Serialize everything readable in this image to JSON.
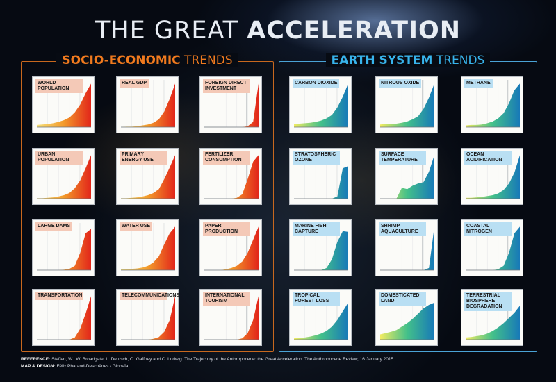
{
  "title_light": "THE GREAT ",
  "title_bold": "ACCELERATION",
  "panels": {
    "socio_economic": {
      "bold": "SOCIO-ECONOMIC",
      "light": " TRENDS"
    },
    "earth_system": {
      "bold": "EARTH SYSTEM",
      "light": " TRENDS"
    }
  },
  "colors": {
    "socio_economic_frame": "#c8681e",
    "earth_system_frame": "#4aa3d6",
    "socio_economic_label_bg": "#f4c9b7",
    "earth_system_label_bg": "#b9dff3",
    "socio_economic_fill": [
      "#f7e27a",
      "#f39a2a",
      "#e2261a"
    ],
    "earth_system_fill": [
      "#f2ec60",
      "#43c08a",
      "#1779b8"
    ]
  },
  "chart_data": [
    {
      "type": "area",
      "group": "socio",
      "name": "World Population",
      "values": [
        0.05,
        0.06,
        0.07,
        0.09,
        0.12,
        0.16,
        0.22,
        0.34,
        0.52,
        0.78,
        1.0
      ]
    },
    {
      "type": "area",
      "group": "socio",
      "name": "Real GDP",
      "values": [
        0.0,
        0.01,
        0.01,
        0.02,
        0.04,
        0.06,
        0.1,
        0.18,
        0.36,
        0.65,
        1.0
      ]
    },
    {
      "type": "area",
      "group": "socio",
      "name": "Foreign Direct Investment",
      "values": [
        0,
        0,
        0,
        0,
        0,
        0,
        0,
        0,
        0.02,
        0.12,
        1.0
      ]
    },
    {
      "type": "area",
      "group": "earth",
      "name": "Carbon Dioxide",
      "values": [
        0.08,
        0.08,
        0.09,
        0.1,
        0.12,
        0.15,
        0.2,
        0.28,
        0.45,
        0.7,
        1.0
      ]
    },
    {
      "type": "area",
      "group": "earth",
      "name": "Nitrous Oxide",
      "values": [
        0.06,
        0.07,
        0.07,
        0.08,
        0.1,
        0.13,
        0.18,
        0.25,
        0.42,
        0.68,
        1.0
      ]
    },
    {
      "type": "area",
      "group": "earth",
      "name": "Methane",
      "values": [
        0.04,
        0.05,
        0.05,
        0.06,
        0.09,
        0.13,
        0.2,
        0.32,
        0.55,
        0.85,
        1.0
      ]
    },
    {
      "type": "area",
      "group": "socio",
      "name": "Urban Population",
      "values": [
        0.01,
        0.01,
        0.02,
        0.03,
        0.05,
        0.08,
        0.13,
        0.24,
        0.42,
        0.7,
        1.0
      ]
    },
    {
      "type": "area",
      "group": "socio",
      "name": "Primary Energy Use",
      "values": [
        0.01,
        0.01,
        0.02,
        0.03,
        0.05,
        0.08,
        0.13,
        0.22,
        0.45,
        0.72,
        1.0
      ]
    },
    {
      "type": "area",
      "group": "socio",
      "name": "Fertilizer Consumption",
      "values": [
        0,
        0,
        0,
        0,
        0,
        0,
        0.02,
        0.1,
        0.45,
        0.85,
        1.0
      ]
    },
    {
      "type": "area",
      "group": "earth",
      "name": "Stratospheric Ozone",
      "values": [
        0,
        0,
        0,
        0,
        0,
        0,
        0,
        0,
        0.05,
        0.7,
        0.75
      ]
    },
    {
      "type": "area",
      "group": "earth",
      "name": "Surface Temperature",
      "values": [
        0,
        0,
        0,
        0,
        0.25,
        0.22,
        0.3,
        0.35,
        0.38,
        0.62,
        1.0
      ]
    },
    {
      "type": "area",
      "group": "earth",
      "name": "Ocean Acidification",
      "values": [
        0.02,
        0.02,
        0.03,
        0.04,
        0.06,
        0.08,
        0.12,
        0.2,
        0.35,
        0.6,
        1.0
      ]
    },
    {
      "type": "area",
      "group": "socio",
      "name": "Large Dams",
      "values": [
        0,
        0,
        0,
        0,
        0,
        0.01,
        0.03,
        0.1,
        0.4,
        0.85,
        0.95
      ]
    },
    {
      "type": "area",
      "group": "socio",
      "name": "Water Use",
      "values": [
        0.02,
        0.02,
        0.03,
        0.04,
        0.06,
        0.1,
        0.18,
        0.32,
        0.6,
        0.85,
        1.0
      ]
    },
    {
      "type": "area",
      "group": "socio",
      "name": "Paper Production",
      "values": [
        0,
        0,
        0,
        0,
        0.02,
        0.05,
        0.1,
        0.2,
        0.4,
        0.7,
        1.0
      ]
    },
    {
      "type": "area",
      "group": "earth",
      "name": "Marine Fish Capture",
      "values": [
        0,
        0,
        0,
        0,
        0,
        0,
        0.05,
        0.25,
        0.65,
        0.9,
        0.88
      ]
    },
    {
      "type": "area",
      "group": "earth",
      "name": "Shrimp Aquaculture",
      "values": [
        0,
        0,
        0,
        0,
        0,
        0,
        0,
        0,
        0,
        0.05,
        1.0
      ]
    },
    {
      "type": "area",
      "group": "earth",
      "name": "Coastal Nitrogen",
      "values": [
        0,
        0,
        0,
        0,
        0,
        0,
        0.02,
        0.1,
        0.4,
        0.85,
        1.0
      ]
    },
    {
      "type": "area",
      "group": "socio",
      "name": "Transportation",
      "values": [
        0,
        0,
        0,
        0,
        0,
        0,
        0,
        0.05,
        0.25,
        0.6,
        1.0
      ]
    },
    {
      "type": "area",
      "group": "socio",
      "name": "Telecommunications",
      "values": [
        0,
        0,
        0,
        0,
        0,
        0,
        0.02,
        0.06,
        0.18,
        0.45,
        1.0
      ]
    },
    {
      "type": "area",
      "group": "socio",
      "name": "International Tourism",
      "values": [
        0,
        0,
        0,
        0,
        0,
        0,
        0,
        0.03,
        0.15,
        0.45,
        1.0
      ]
    },
    {
      "type": "area",
      "group": "earth",
      "name": "Tropical Forest Loss",
      "values": [
        0.03,
        0.04,
        0.05,
        0.07,
        0.1,
        0.14,
        0.2,
        0.3,
        0.45,
        0.65,
        0.85
      ]
    },
    {
      "type": "area",
      "group": "earth",
      "name": "Domesticated Land",
      "values": [
        0.12,
        0.15,
        0.18,
        0.22,
        0.3,
        0.38,
        0.48,
        0.6,
        0.72,
        0.8,
        0.85
      ]
    },
    {
      "type": "area",
      "group": "earth",
      "name": "Terrestrial Biosphere Degradation",
      "values": [
        0.05,
        0.06,
        0.08,
        0.1,
        0.14,
        0.2,
        0.28,
        0.38,
        0.5,
        0.62,
        0.78
      ]
    }
  ],
  "footer": {
    "reference_label": "REFERENCE:",
    "reference_text": " Steffen, W., W. Broadgate, L. Deutsch, O. Gaffney and C. Ludwig. The Trajectory of the Anthropocene: the Great Acceleration. The Anthropocene Review, 16 January 2015.",
    "design_label": "MAP & DESIGN:",
    "design_text": " Félix Pharand-Deschênes / Globaïa."
  }
}
